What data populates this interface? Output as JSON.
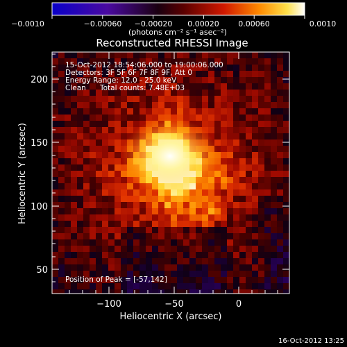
{
  "colorbar": {
    "ticks": [
      "−0.0010",
      "−0.00060",
      "−0.00020",
      "0.00020",
      "0.00060",
      "0.0010"
    ],
    "units": "(photons cm⁻² s⁻¹ asec⁻²)"
  },
  "title": "Reconstructed RHESSI Image",
  "overlay": {
    "time_range": "15-Oct-2012 18:54:06.000 to 19:00:06.000",
    "detectors": "Detectors: 3F 5F 6F 7F 8F 9F, Att 0",
    "energy_range": "Energy Range: 12.0 - 25.0 keV",
    "clean_label": "Clean",
    "total_counts": "Total counts: 7.48E+03",
    "peak_position": "Position of Peak = [-57,142]"
  },
  "axes": {
    "xlabel": "Heliocentric X (arcsec)",
    "ylabel": "Heliocentric Y (arcsec)",
    "x_ticks": [
      "−100",
      "−50",
      "0"
    ],
    "y_ticks": [
      "200",
      "150",
      "100",
      "50"
    ]
  },
  "footer": {
    "timestamp": "16-Oct-2012 13:25"
  },
  "colors": {
    "background": "#000000",
    "text": "#ffffff"
  }
}
